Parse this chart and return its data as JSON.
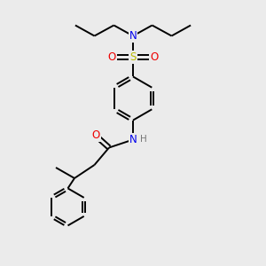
{
  "bg_color": "#ebebeb",
  "bond_color": "#000000",
  "bond_width": 1.4,
  "atom_colors": {
    "N": "#0000ee",
    "O": "#ee0000",
    "S": "#bbbb00",
    "H": "#777777",
    "C": "#000000"
  },
  "font_size_atom": 8.5,
  "font_size_H": 7.5,
  "figsize": [
    3.0,
    3.0
  ],
  "dpi": 100
}
